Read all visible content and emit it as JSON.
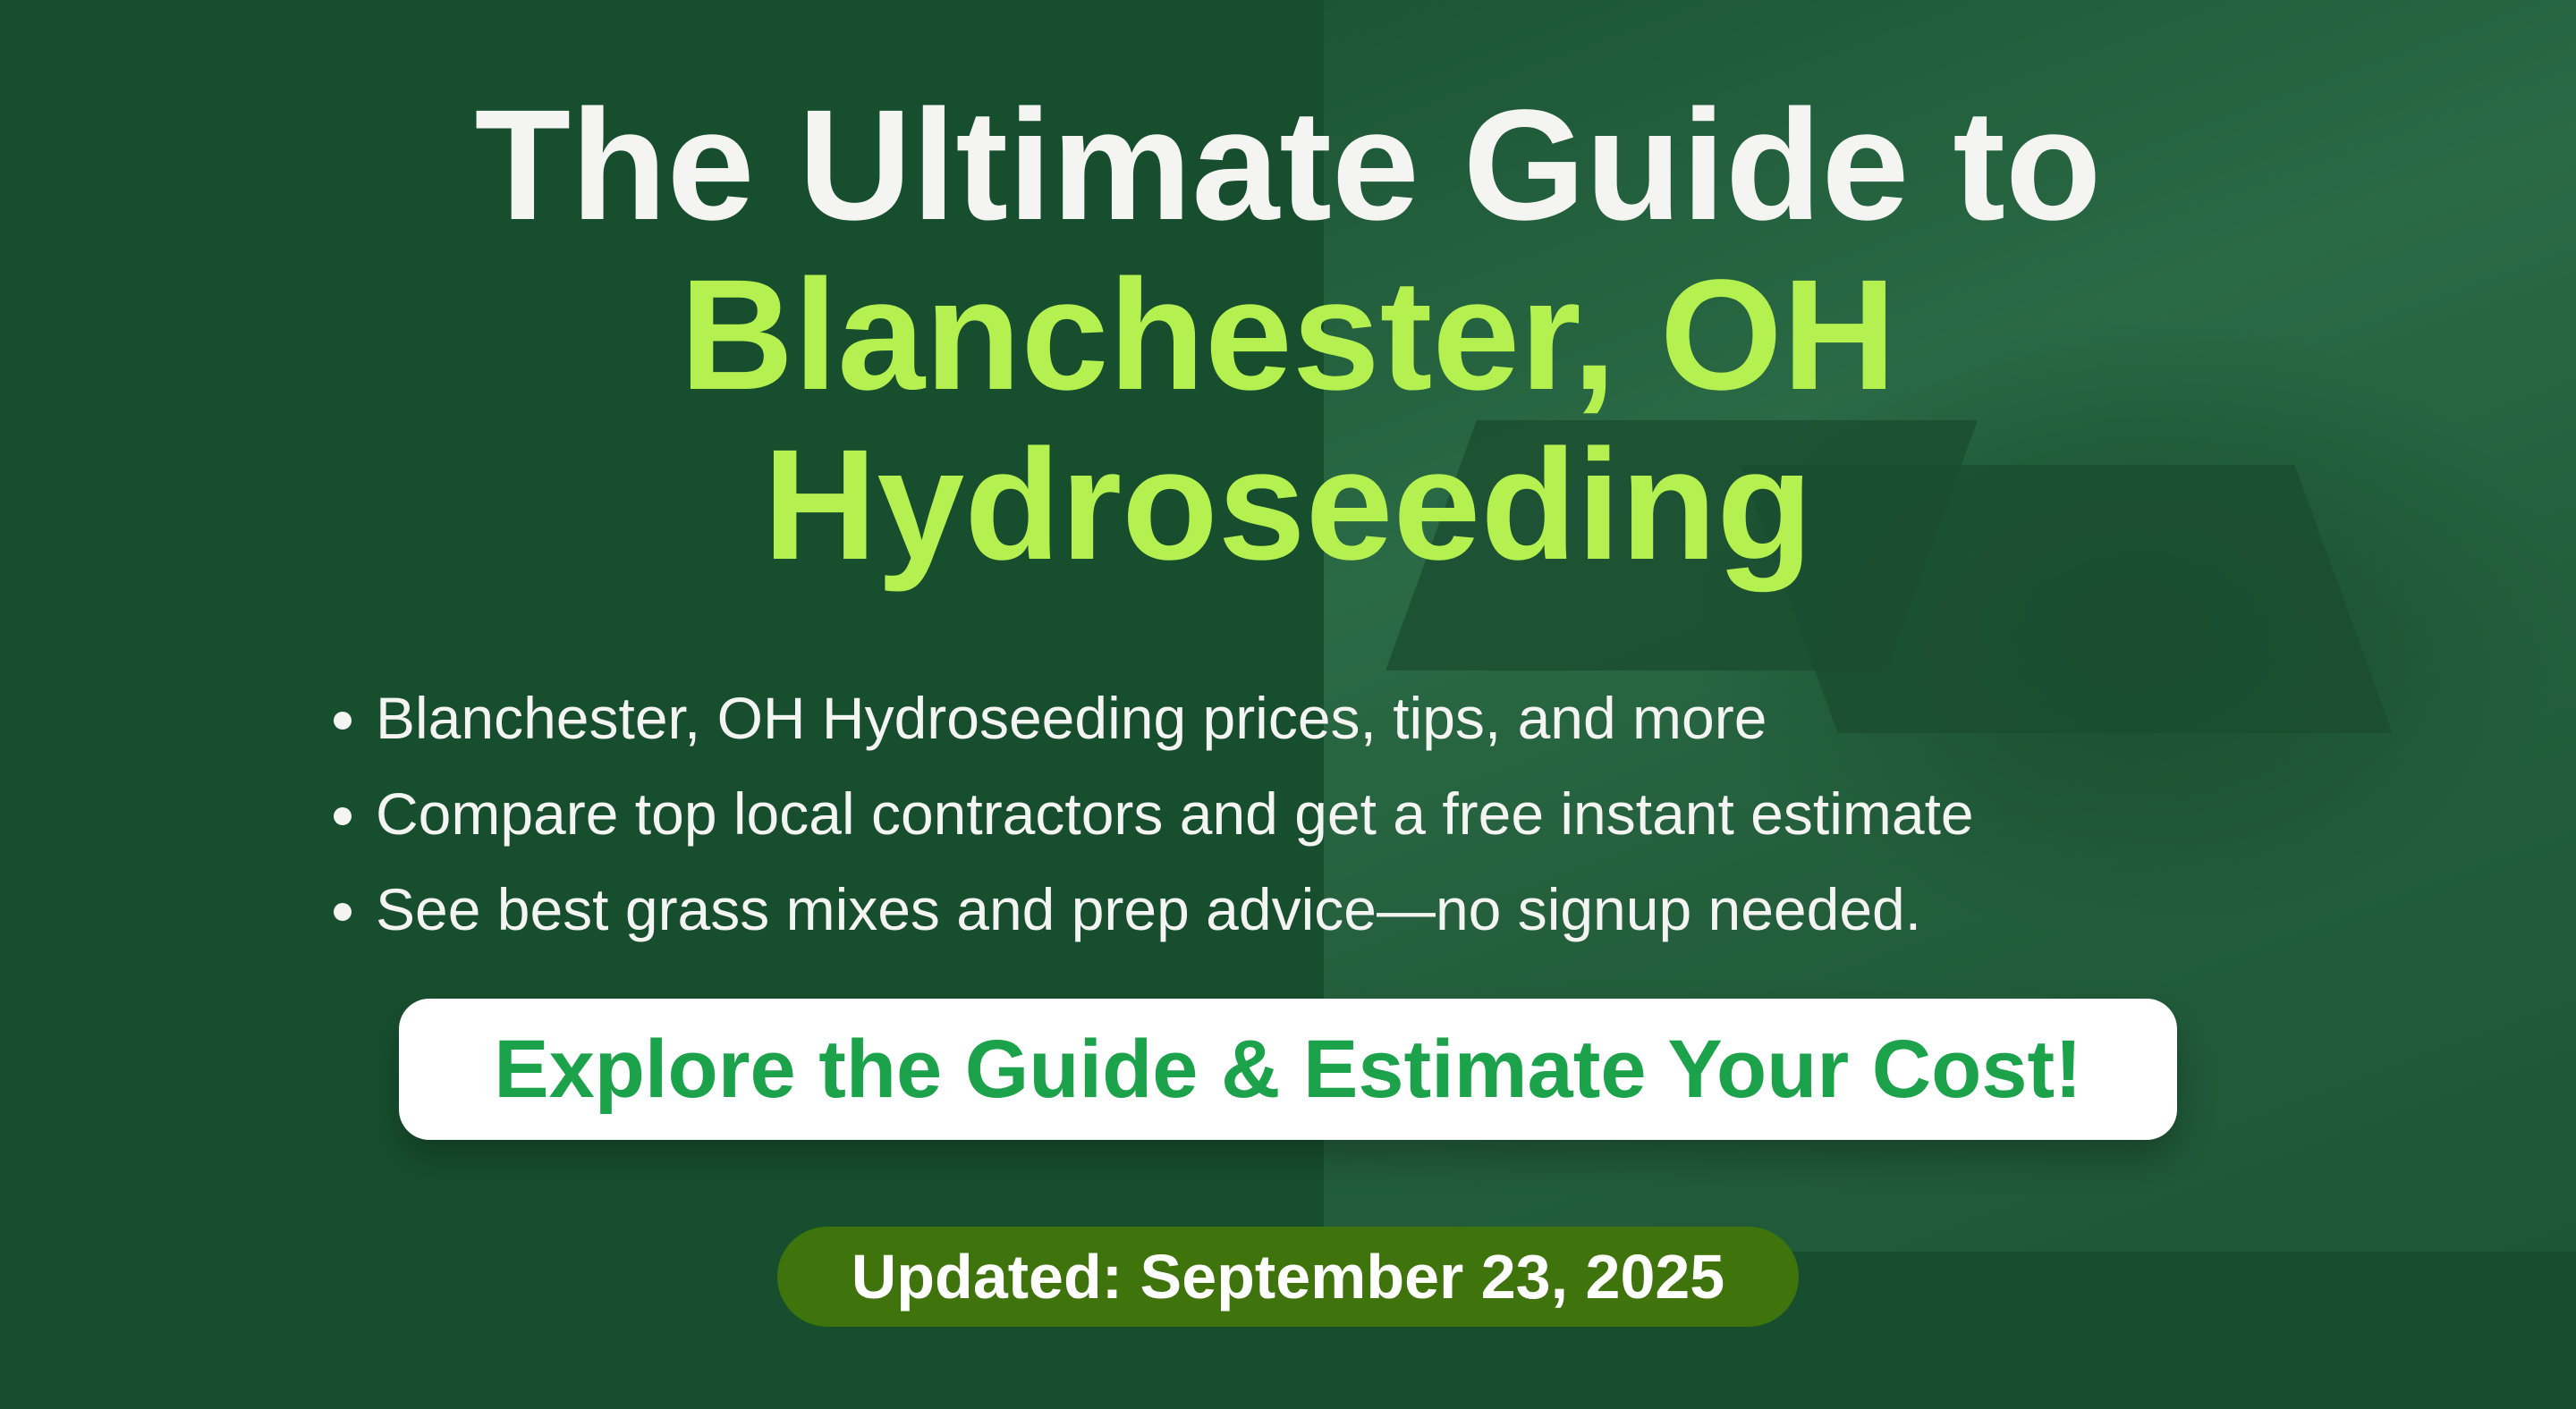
{
  "colors": {
    "background": "#174f2e",
    "accent": "#b5f051",
    "button_text": "#1ba24a",
    "badge": "#3f730c"
  },
  "title": {
    "line1": "The Ultimate Guide to",
    "line2": "Blanchester, OH",
    "line3": "Hydroseeding"
  },
  "bullets": [
    "Blanchester, OH Hydroseeding prices, tips, and more",
    "Compare top local contractors and get a free instant estimate",
    "See best grass mixes and prep advice—no signup needed."
  ],
  "cta": {
    "label": "Explore the Guide & Estimate Your Cost!"
  },
  "updated": {
    "label": "Updated: September 23, 2025"
  }
}
